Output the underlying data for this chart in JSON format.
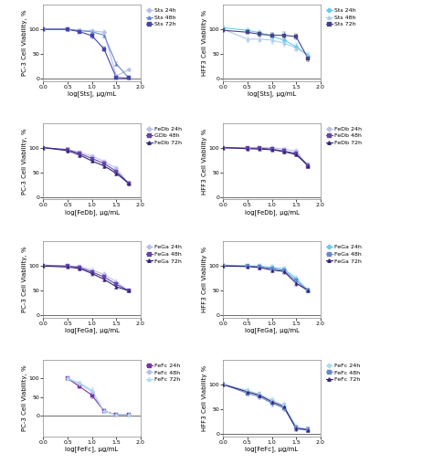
{
  "rows": 4,
  "cols": 2,
  "figsize": [
    4.74,
    5.08
  ],
  "dpi": 100,
  "xlim": [
    0.0,
    2.0
  ],
  "xticks": [
    0.0,
    0.5,
    1.0,
    1.5,
    2.0
  ],
  "subplots": [
    {
      "row": 0,
      "col": 0,
      "ylabel": "PC-3 Cell Viability, %",
      "xlabel": "log[Sts], μg/mL",
      "ylim": [
        -5,
        150
      ],
      "yticks": [
        0,
        50,
        100
      ],
      "x_values": [
        0.0,
        0.5,
        0.75,
        1.0,
        1.25,
        1.5,
        1.75
      ],
      "legend_labels": [
        "Sts 24h",
        "Sts 48h",
        "Sts 72h"
      ],
      "colors": [
        "#b8c0e8",
        "#6688cc",
        "#4444aa"
      ],
      "markers": [
        "D",
        "^",
        "s"
      ],
      "data": [
        [
          100,
          100,
          98,
          97,
          94,
          5,
          18
        ],
        [
          100,
          100,
          97,
          95,
          88,
          30,
          2
        ],
        [
          100,
          100,
          95,
          87,
          60,
          2,
          1
        ]
      ],
      "errors": [
        [
          2,
          2,
          3,
          4,
          4,
          3,
          3
        ],
        [
          2,
          2,
          3,
          4,
          5,
          4,
          3
        ],
        [
          2,
          2,
          3,
          5,
          5,
          3,
          2
        ]
      ],
      "show_legend": true
    },
    {
      "row": 0,
      "col": 1,
      "ylabel": "HFF3 Cell Viability %",
      "xlabel": "log[Sts], μg/mL",
      "ylim": [
        -5,
        150
      ],
      "yticks": [
        0,
        50,
        100
      ],
      "x_values": [
        0.0,
        0.5,
        0.75,
        1.0,
        1.25,
        1.5,
        1.75
      ],
      "legend_labels": [
        "Sts 24h",
        "Sts 48h",
        "Sts 72h"
      ],
      "colors": [
        "#66ccee",
        "#aaccee",
        "#444488"
      ],
      "markers": [
        "D",
        "^",
        "s"
      ],
      "data": [
        [
          103,
          98,
          93,
          86,
          78,
          65,
          47
        ],
        [
          100,
          80,
          80,
          78,
          72,
          62,
          47
        ],
        [
          98,
          94,
          90,
          88,
          88,
          85,
          40
        ]
      ],
      "errors": [
        [
          4,
          4,
          5,
          6,
          7,
          7,
          5
        ],
        [
          4,
          6,
          6,
          7,
          7,
          6,
          5
        ],
        [
          3,
          4,
          5,
          5,
          6,
          6,
          5
        ]
      ],
      "show_legend": true
    },
    {
      "row": 1,
      "col": 0,
      "ylabel": "PC-3 Cell Viability, %",
      "xlabel": "log[FeDb], μg/mL",
      "ylim": [
        -5,
        150
      ],
      "yticks": [
        0,
        50,
        100
      ],
      "x_values": [
        0.0,
        0.5,
        0.75,
        1.0,
        1.25,
        1.5,
        1.75
      ],
      "legend_labels": [
        "FeDb 24h",
        "GDb 48h",
        "FeDb 72h"
      ],
      "colors": [
        "#b8c0e8",
        "#6644aa",
        "#332277"
      ],
      "markers": [
        "D",
        "s",
        "^"
      ],
      "data": [
        [
          100,
          96,
          90,
          83,
          72,
          58,
          28
        ],
        [
          100,
          96,
          88,
          78,
          68,
          52,
          28
        ],
        [
          100,
          94,
          85,
          73,
          63,
          48,
          28
        ]
      ],
      "errors": [
        [
          2,
          3,
          4,
          4,
          4,
          4,
          3
        ],
        [
          2,
          3,
          4,
          4,
          5,
          5,
          3
        ],
        [
          2,
          3,
          4,
          4,
          5,
          5,
          3
        ]
      ],
      "show_legend": true
    },
    {
      "row": 1,
      "col": 1,
      "ylabel": "HFF3 Cell Viability %",
      "xlabel": "log[FeDb], μg/mL",
      "ylim": [
        -5,
        150
      ],
      "yticks": [
        0,
        50,
        100
      ],
      "x_values": [
        0.0,
        0.5,
        0.75,
        1.0,
        1.25,
        1.5,
        1.75
      ],
      "legend_labels": [
        "FeDb 24h",
        "FeDb 48h",
        "FeDb 72h"
      ],
      "colors": [
        "#b8c0e8",
        "#6644aa",
        "#332277"
      ],
      "markers": [
        "D",
        "s",
        "^"
      ],
      "data": [
        [
          100,
          99,
          100,
          100,
          97,
          93,
          63
        ],
        [
          100,
          99,
          99,
          97,
          93,
          88,
          63
        ],
        [
          100,
          98,
          97,
          96,
          92,
          86,
          63
        ]
      ],
      "errors": [
        [
          2,
          2,
          2,
          3,
          3,
          4,
          4
        ],
        [
          2,
          2,
          2,
          3,
          4,
          4,
          4
        ],
        [
          2,
          2,
          2,
          3,
          4,
          4,
          4
        ]
      ],
      "show_legend": true
    },
    {
      "row": 2,
      "col": 0,
      "ylabel": "PC-3 Cell Viability, %",
      "xlabel": "log[FeGa], μg/mL",
      "ylim": [
        -5,
        150
      ],
      "yticks": [
        0,
        50,
        100
      ],
      "x_values": [
        0.0,
        0.5,
        0.75,
        1.0,
        1.25,
        1.5,
        1.75
      ],
      "legend_labels": [
        "FeGa 24h",
        "FeGa 48h",
        "FeGa 72h"
      ],
      "colors": [
        "#b8c0e8",
        "#6644aa",
        "#332277"
      ],
      "markers": [
        "D",
        "s",
        "^"
      ],
      "data": [
        [
          102,
          100,
          99,
          92,
          83,
          68,
          50
        ],
        [
          101,
          100,
          97,
          88,
          78,
          63,
          50
        ],
        [
          100,
          98,
          95,
          85,
          73,
          58,
          50
        ]
      ],
      "errors": [
        [
          2,
          2,
          3,
          4,
          4,
          4,
          3
        ],
        [
          2,
          2,
          3,
          4,
          4,
          4,
          3
        ],
        [
          2,
          2,
          3,
          4,
          4,
          4,
          3
        ]
      ],
      "show_legend": true
    },
    {
      "row": 2,
      "col": 1,
      "ylabel": "HFF3 Cell Viability %",
      "xlabel": "log[FeGa], μg/mL",
      "ylim": [
        -5,
        150
      ],
      "yticks": [
        0,
        50,
        100
      ],
      "x_values": [
        0.0,
        0.5,
        0.75,
        1.0,
        1.25,
        1.5,
        1.75
      ],
      "legend_labels": [
        "FeGa 24h",
        "FeGa 48h",
        "FeGa 72h"
      ],
      "colors": [
        "#66ccee",
        "#6688cc",
        "#332277"
      ],
      "markers": [
        "D",
        "s",
        "^"
      ],
      "data": [
        [
          102,
          100,
          100,
          97,
          94,
          75,
          50
        ],
        [
          101,
          100,
          98,
          95,
          91,
          70,
          50
        ],
        [
          100,
          99,
          97,
          92,
          89,
          65,
          50
        ]
      ],
      "errors": [
        [
          3,
          3,
          4,
          5,
          5,
          5,
          4
        ],
        [
          3,
          3,
          4,
          5,
          5,
          5,
          4
        ],
        [
          3,
          3,
          4,
          5,
          5,
          5,
          4
        ]
      ],
      "show_legend": true
    },
    {
      "row": 3,
      "col": 0,
      "ylabel": "PC-3 Cell Viability, %",
      "xlabel": "log[FeFc], μg/mL",
      "ylim": [
        -55,
        150
      ],
      "yticks": [
        0,
        50,
        100
      ],
      "x_values": [
        0.5,
        0.75,
        1.0,
        1.25,
        1.5,
        1.75
      ],
      "legend_labels": [
        "FeFc 24h",
        "FeFc 48h",
        "FeFc 72h"
      ],
      "colors": [
        "#7733aa",
        "#b8c0e8",
        "#aaddee"
      ],
      "markers": [
        "s",
        "D",
        "^"
      ],
      "data": [
        [
          100,
          78,
          55,
          12,
          3,
          2
        ],
        [
          100,
          85,
          65,
          12,
          3,
          2
        ],
        [
          100,
          88,
          68,
          12,
          3,
          2
        ]
      ],
      "errors": [
        [
          3,
          5,
          7,
          5,
          3,
          2
        ],
        [
          3,
          5,
          7,
          5,
          3,
          2
        ],
        [
          3,
          5,
          7,
          5,
          3,
          2
        ]
      ],
      "show_legend": true
    },
    {
      "row": 3,
      "col": 1,
      "ylabel": "HFF3 Cell Viability %",
      "xlabel": "log[FeFc], μg/mL",
      "ylim": [
        -5,
        150
      ],
      "yticks": [
        0,
        50,
        100
      ],
      "x_values": [
        0.0,
        0.5,
        0.75,
        1.0,
        1.25,
        1.5,
        1.75
      ],
      "legend_labels": [
        "FeFc 24h",
        "FeFc 48h",
        "FeFc 72h"
      ],
      "colors": [
        "#aaddee",
        "#6688cc",
        "#332277"
      ],
      "markers": [
        "D",
        "s",
        "^"
      ],
      "data": [
        [
          100,
          88,
          80,
          68,
          58,
          15,
          8
        ],
        [
          100,
          82,
          75,
          62,
          52,
          12,
          8
        ],
        [
          100,
          85,
          78,
          65,
          55,
          10,
          8
        ]
      ],
      "errors": [
        [
          3,
          4,
          5,
          6,
          6,
          5,
          4
        ],
        [
          3,
          4,
          5,
          6,
          6,
          5,
          4
        ],
        [
          3,
          4,
          5,
          6,
          6,
          5,
          4
        ]
      ],
      "show_legend": true
    }
  ],
  "legend_fontsize": 4.5,
  "axis_label_fontsize": 5.0,
  "tick_fontsize": 4.5,
  "marker_size": 2.5,
  "line_width": 0.8,
  "capsize": 1.5,
  "elinewidth": 0.5
}
